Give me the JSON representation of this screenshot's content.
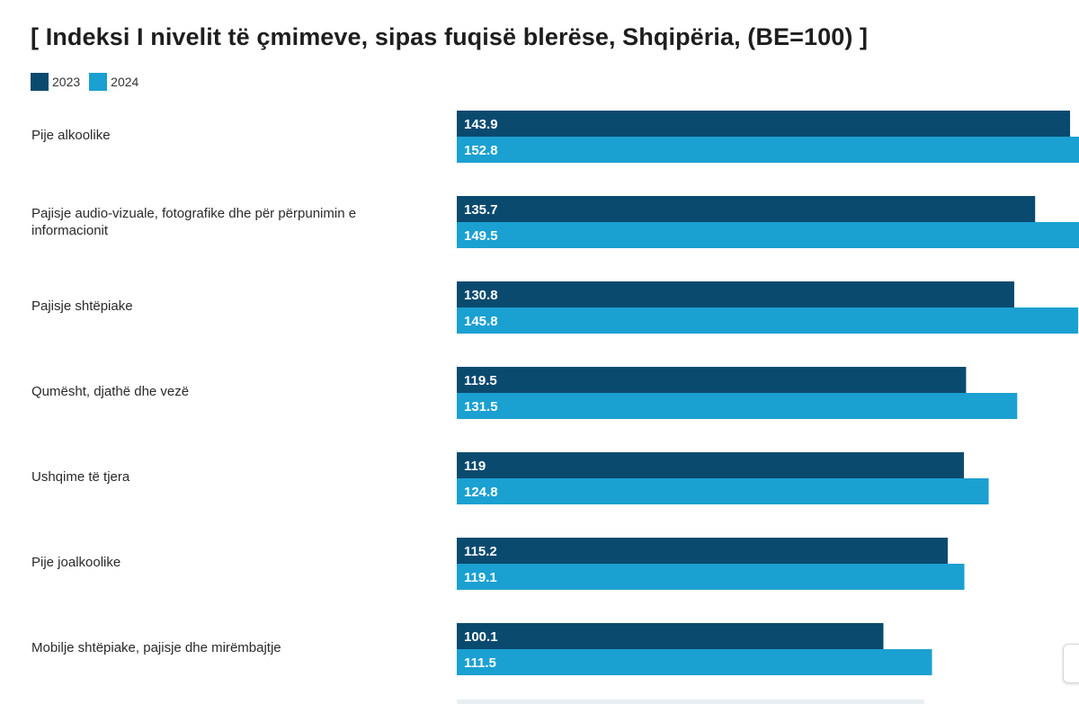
{
  "title": "[ Indeksi I nivelit të çmimeve, sipas fuqisë blerëse, Shqipëria,  (BE=100) ]",
  "colors": {
    "series_2023": "#0b4a6f",
    "series_2024": "#1ba0d2"
  },
  "legend": [
    {
      "label": "2023",
      "color": "#0b4a6f"
    },
    {
      "label": "2024",
      "color": "#1ba0d2"
    }
  ],
  "chart_data": {
    "type": "bar",
    "orientation": "horizontal",
    "title": "[ Indeksi I nivelit të çmimeve, sipas fuqisë blerëse, Shqipëria,  (BE=100) ]",
    "categories": [
      [
        "Pije alkoolike"
      ],
      [
        "Pajisje audio-vizuale, fotografike dhe për përpunimin e",
        "informacionit"
      ],
      [
        "Pajisje shtëpiake"
      ],
      [
        "Qumësht, djathë dhe vezë"
      ],
      [
        "Ushqime të tjera"
      ],
      [
        "Pije joalkoolike"
      ],
      [
        "Mobilje shtëpiake, pajisje dhe mirëmbajtje"
      ]
    ],
    "series": [
      {
        "name": "2023",
        "values": [
          143.9,
          135.7,
          130.8,
          119.5,
          119,
          115.2,
          100.1
        ],
        "labels": [
          "143.9",
          "135.7",
          "130.8",
          "119.5",
          "119",
          "115.2",
          "100.1"
        ]
      },
      {
        "name": "2024",
        "values": [
          152.8,
          149.5,
          145.8,
          131.5,
          124.8,
          119.1,
          111.5
        ],
        "labels": [
          "152.8",
          "149.5",
          "145.8",
          "131.5",
          "124.8",
          "119.1",
          "111.5"
        ]
      }
    ],
    "xlim": [
      0,
      160
    ],
    "grid": false,
    "legend_position": "top-left"
  }
}
